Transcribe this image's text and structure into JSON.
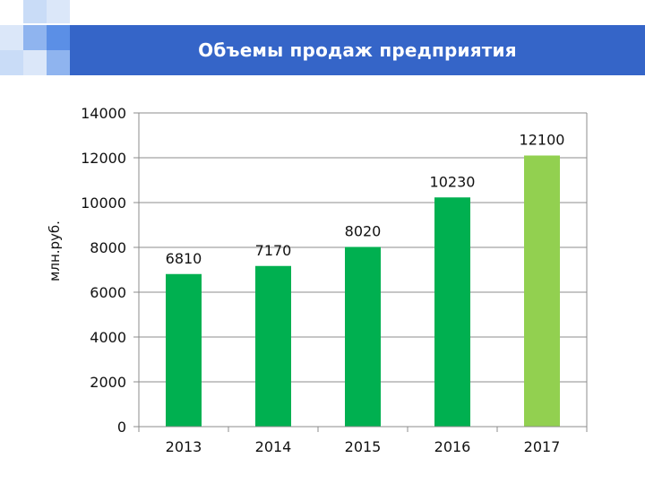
{
  "slide": {
    "title": "Объемы продаж предприятия"
  },
  "colors": {
    "header_blue": "#3565c8",
    "square_light": "#c9dcf7",
    "square_mid": "#8fb4ef",
    "square_dark": "#5b8fe6",
    "bar_green": "#00b050",
    "bar_light_green": "#92d050"
  },
  "chart_data": {
    "type": "bar",
    "title": "",
    "xlabel": "",
    "ylabel": "млн.руб.",
    "categories": [
      "2013",
      "2014",
      "2015",
      "2016",
      "2017"
    ],
    "values": [
      6810,
      7170,
      8020,
      10230,
      12100
    ],
    "data_labels": [
      "6810",
      "7170",
      "8020",
      "10230",
      "12100"
    ],
    "bar_colors": [
      "#00b050",
      "#00b050",
      "#00b050",
      "#00b050",
      "#92d050"
    ],
    "ylim": [
      0,
      14000
    ],
    "yticks": [
      0,
      2000,
      4000,
      6000,
      8000,
      10000,
      12000,
      14000
    ],
    "ytick_labels": [
      "0",
      "2000",
      "4000",
      "6000",
      "8000",
      "10000",
      "12000",
      "14000"
    ],
    "grid": true,
    "legend": "none"
  }
}
